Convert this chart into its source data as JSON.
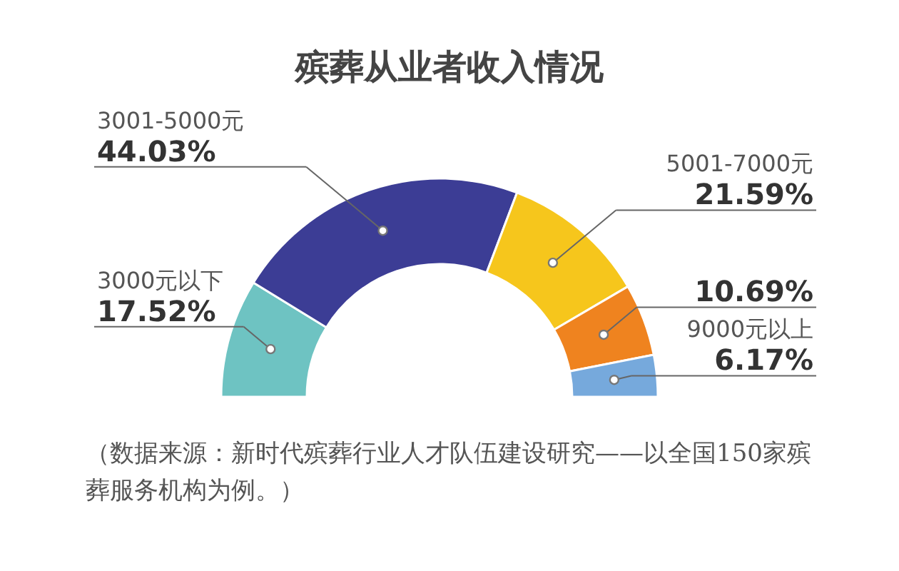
{
  "chart_data": {
    "type": "donut",
    "title": "殡葬从业者收入情况",
    "categories": [
      "3000元以下",
      "3001-5000元",
      "5001-7000元",
      null,
      "9000元以上"
    ],
    "values": [
      17.52,
      44.03,
      21.59,
      10.69,
      6.17
    ],
    "colors": [
      "#6ec3c2",
      "#3c3d95",
      "#f6c61c",
      "#ef831f",
      "#76a9dc"
    ],
    "value_labels": [
      "17.52%",
      "44.03%",
      "21.59%",
      "10.69%",
      "6.17%"
    ],
    "annotations": [
      "（数据来源：新时代殡葬行业人才队伍建设研究——以全国150家殡葬服务机构为例。）"
    ]
  }
}
